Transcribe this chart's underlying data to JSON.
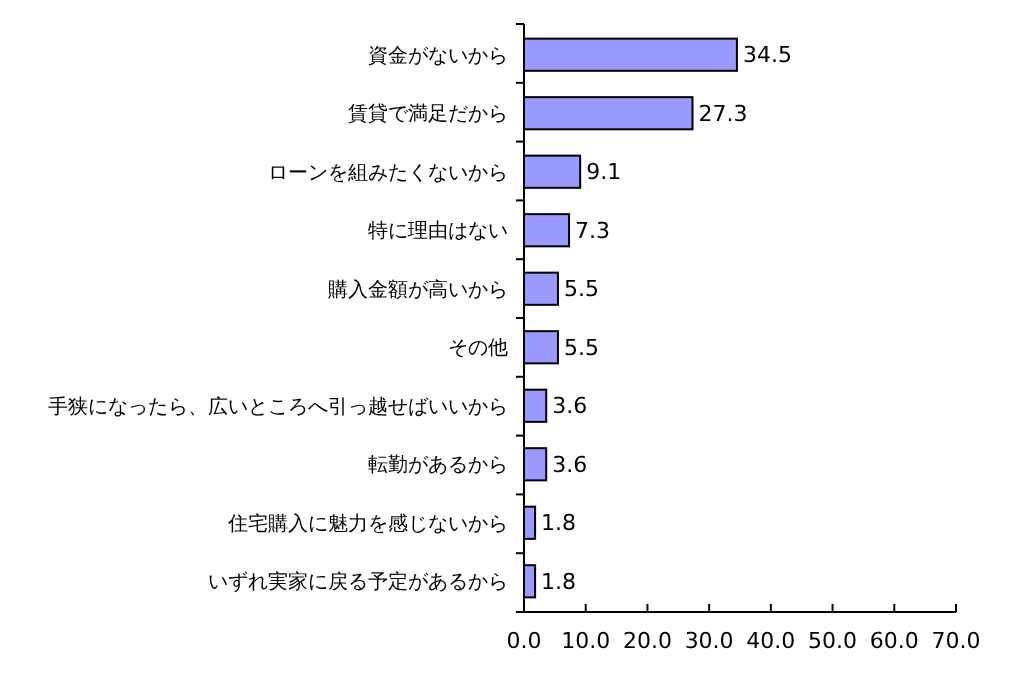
{
  "chart_data": {
    "type": "bar",
    "orientation": "horizontal",
    "categories": [
      "資金がないから",
      "賃貸で満足だから",
      "ローンを組みたくないから",
      "特に理由はない",
      "購入金額が高いから",
      "その他",
      "手狭になったら、広いところへ引っ越せばいいから",
      "転勤があるから",
      "住宅購入に魅力を感じないから",
      "いずれ実家に戻る予定があるから"
    ],
    "values": [
      34.5,
      27.3,
      9.1,
      7.3,
      5.5,
      5.5,
      3.6,
      3.6,
      1.8,
      1.8
    ],
    "color": "#9999ff",
    "data_labels": true,
    "grid": false,
    "xlim": [
      0,
      70
    ],
    "xticks": [
      {
        "value": 0,
        "label": "0.0"
      },
      {
        "value": 10,
        "label": "10.0"
      },
      {
        "value": 20,
        "label": "20.0"
      },
      {
        "value": 30,
        "label": "30.0"
      },
      {
        "value": 40,
        "label": "40.0"
      },
      {
        "value": 50,
        "label": "50.0"
      },
      {
        "value": 60,
        "label": "60.0"
      },
      {
        "value": 70,
        "label": "70.0"
      }
    ]
  }
}
